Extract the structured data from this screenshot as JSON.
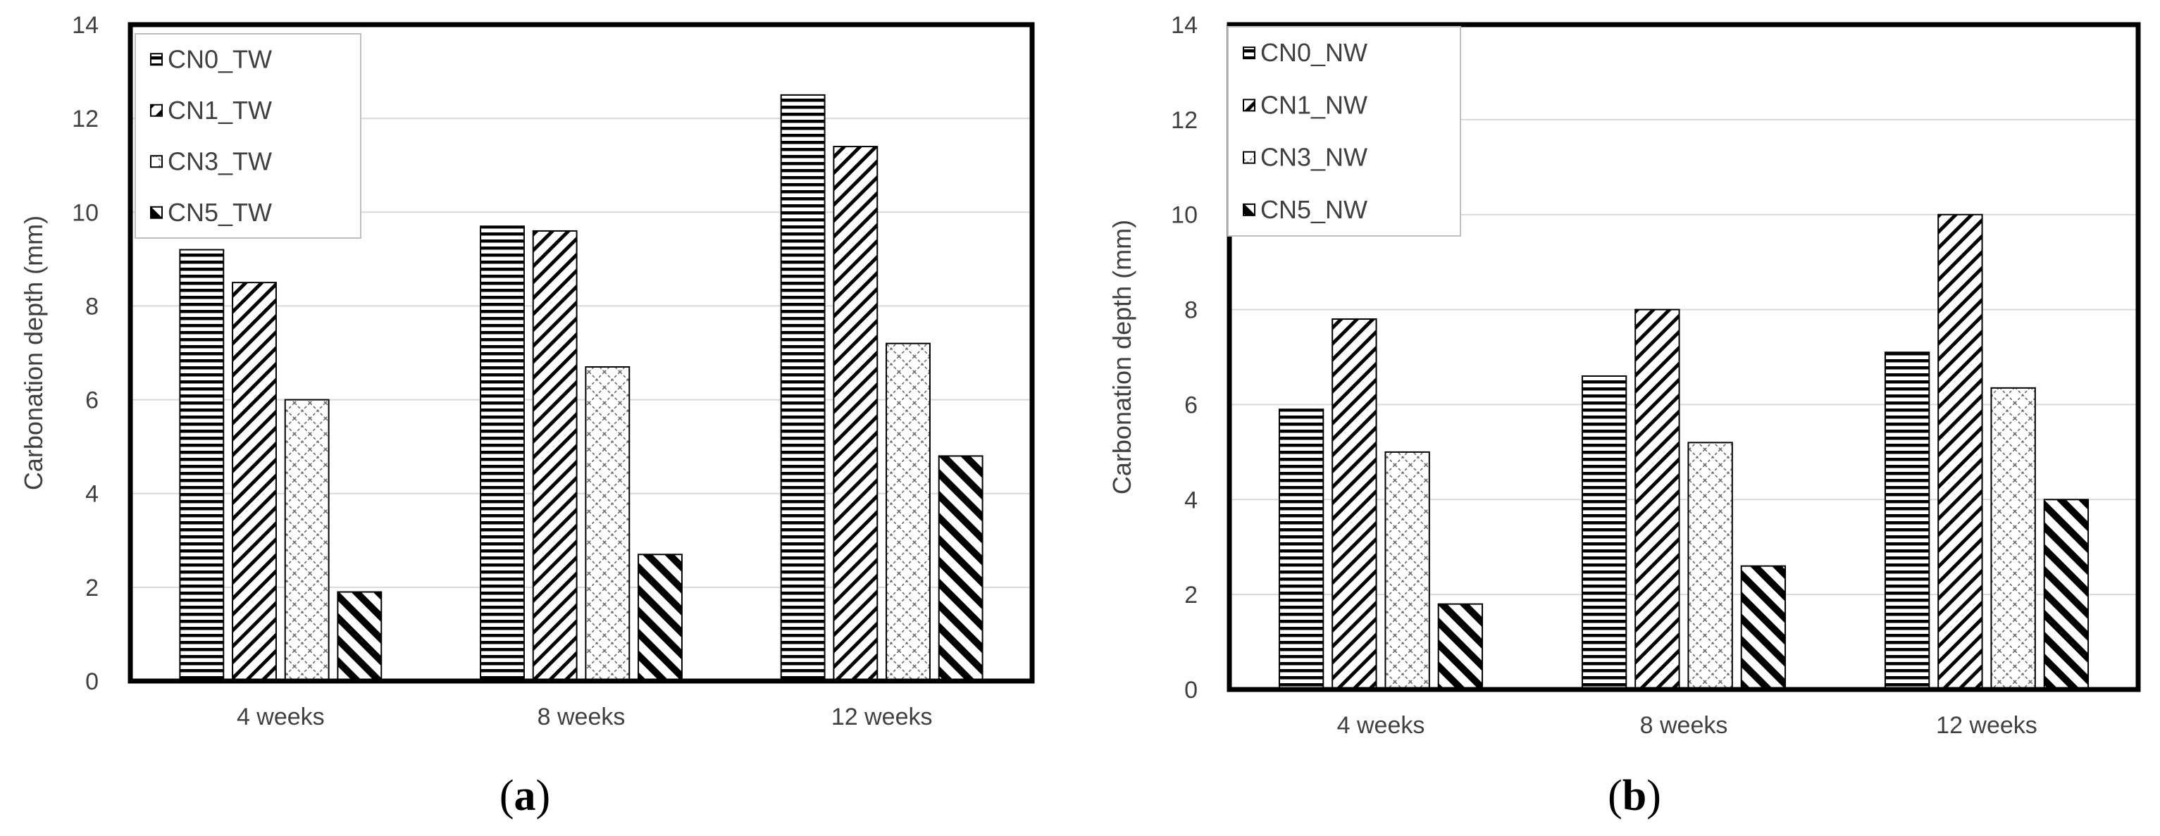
{
  "chart_data": [
    {
      "type": "bar",
      "panel_label": "(a)",
      "title": "",
      "xlabel": "",
      "ylabel": "Carbonation depth (mm)",
      "ylim": [
        0,
        14
      ],
      "yticks": [
        "0",
        "2",
        "4",
        "6",
        "8",
        "10",
        "12",
        "14"
      ],
      "categories": [
        "4 weeks",
        "8 weeks",
        "12 weeks"
      ],
      "series": [
        {
          "name": "CN0_TW",
          "pattern": "horizontal-lines",
          "values": [
            9.2,
            9.7,
            12.5
          ]
        },
        {
          "name": "CN1_TW",
          "pattern": "diagonal-lines",
          "values": [
            8.5,
            9.6,
            11.4
          ]
        },
        {
          "name": "CN3_TW",
          "pattern": "crosshatch-dashed",
          "values": [
            6.0,
            6.7,
            7.2
          ]
        },
        {
          "name": "CN5_TW",
          "pattern": "wide-diagonal",
          "values": [
            1.9,
            2.7,
            4.8
          ]
        }
      ],
      "grid": true,
      "legend": "top-left"
    },
    {
      "type": "bar",
      "panel_label": "(b)",
      "title": "",
      "xlabel": "",
      "ylabel": "Carbonation depth (mm)",
      "ylim": [
        0,
        14
      ],
      "yticks": [
        "0",
        "2",
        "4",
        "6",
        "8",
        "10",
        "12",
        "14"
      ],
      "categories": [
        "4 weeks",
        "8 weeks",
        "12 weeks"
      ],
      "series": [
        {
          "name": "CN0_NW",
          "pattern": "horizontal-lines",
          "values": [
            5.9,
            6.6,
            7.1
          ]
        },
        {
          "name": "CN1_NW",
          "pattern": "diagonal-lines",
          "values": [
            7.8,
            8.0,
            10.0
          ]
        },
        {
          "name": "CN3_NW",
          "pattern": "crosshatch-dashed",
          "values": [
            5.0,
            5.2,
            6.35
          ]
        },
        {
          "name": "CN5_NW",
          "pattern": "wide-diagonal",
          "values": [
            1.8,
            2.6,
            4.0
          ]
        }
      ],
      "grid": true,
      "legend": "top-left"
    }
  ]
}
